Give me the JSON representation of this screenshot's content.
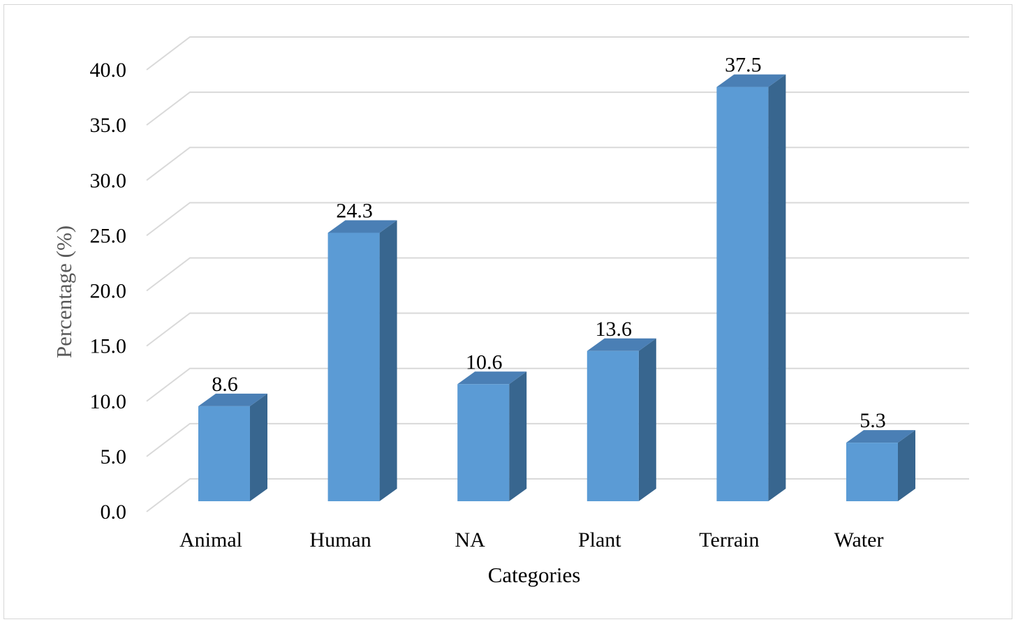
{
  "chart_data": {
    "type": "bar",
    "style": "3d-column",
    "title": "",
    "xlabel": "Categories",
    "ylabel": "Percentage (%)",
    "categories": [
      "Animal",
      "Human",
      "NA",
      "Plant",
      "Terrain",
      "Water"
    ],
    "values": [
      8.6,
      24.3,
      10.6,
      13.6,
      37.5,
      5.3
    ],
    "value_labels": [
      "8.6",
      "24.3",
      "10.6",
      "13.6",
      "37.5",
      "5.3"
    ],
    "ylim": [
      0,
      40
    ],
    "y_ticks": [
      "0.0",
      "5.0",
      "10.0",
      "15.0",
      "20.0",
      "25.0",
      "30.0",
      "35.0",
      "40.0"
    ],
    "grid": true,
    "legend": "none",
    "colors": {
      "bar_front": "#5b9bd5",
      "bar_side": "#38668f",
      "bar_top": "#4a7fb5",
      "grid": "#d9d9d9",
      "ylabel": "#595959",
      "text": "#000000"
    }
  }
}
